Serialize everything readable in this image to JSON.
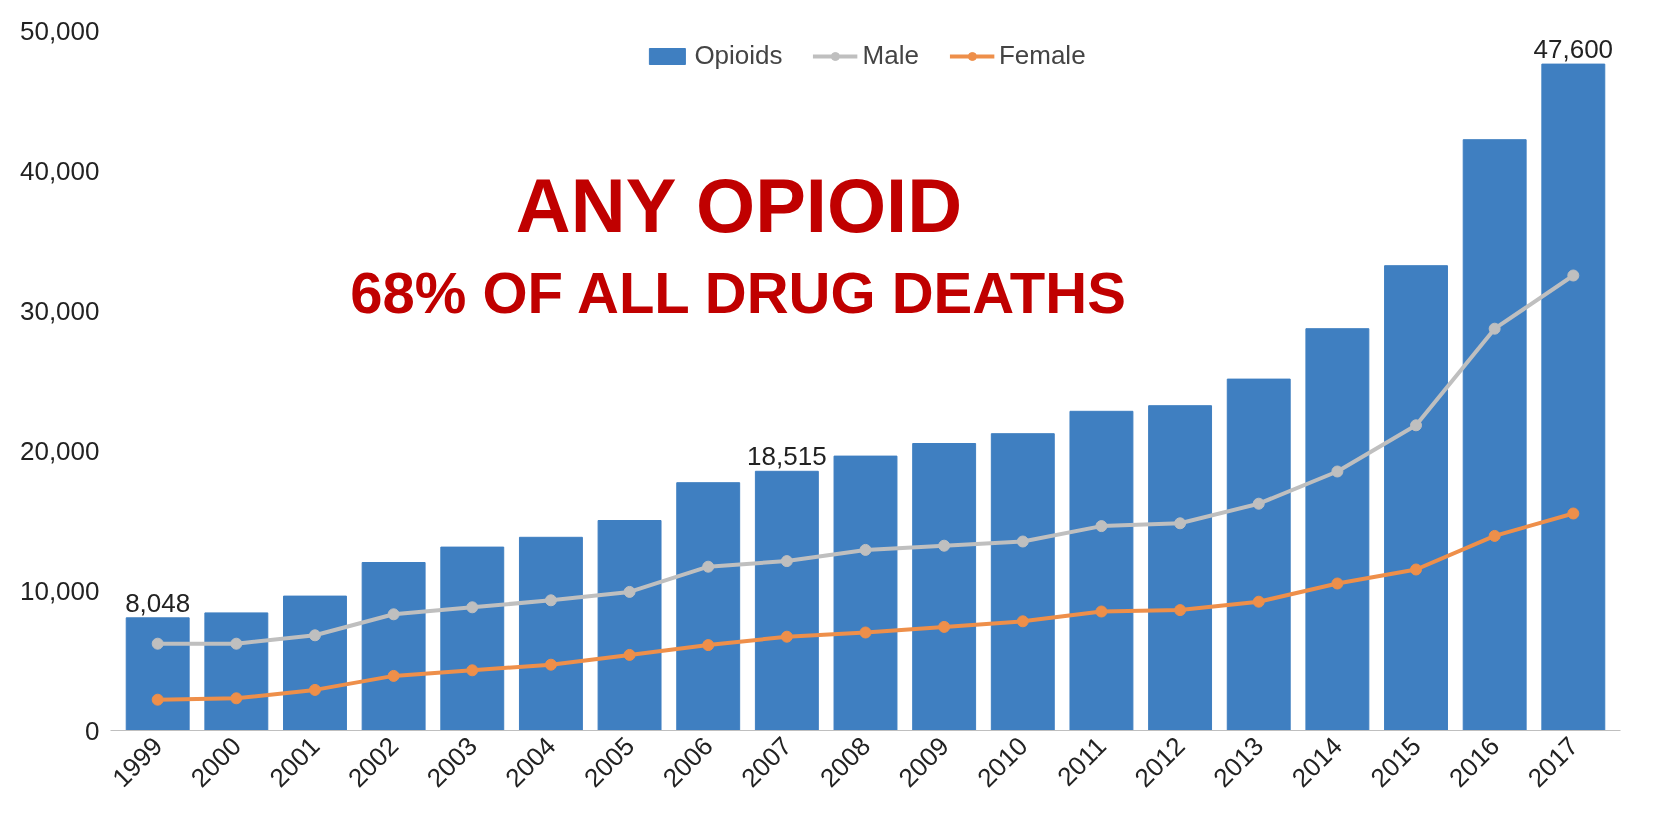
{
  "chart_data": {
    "type": "bar",
    "categories": [
      "1999",
      "2000",
      "2001",
      "2002",
      "2003",
      "2004",
      "2005",
      "2006",
      "2007",
      "2008",
      "2009",
      "2010",
      "2011",
      "2012",
      "2013",
      "2014",
      "2015",
      "2016",
      "2017"
    ],
    "series": [
      {
        "name": "Opioids",
        "color": "#3f7fc1",
        "values": [
          8048,
          8400,
          9600,
          12000,
          13100,
          13800,
          15000,
          17700,
          18515,
          19600,
          20500,
          21200,
          22800,
          23200,
          25100,
          28700,
          33200,
          42200,
          47600
        ],
        "value_labels": [
          "8,048",
          null,
          null,
          null,
          null,
          null,
          null,
          null,
          "18,515",
          null,
          null,
          null,
          null,
          null,
          null,
          null,
          null,
          null,
          "47,600"
        ]
      },
      {
        "name": "Male",
        "type": "line",
        "color": "#bfbfbf",
        "values": [
          6200,
          6200,
          6800,
          8300,
          8800,
          9300,
          9900,
          11700,
          12100,
          12900,
          13200,
          13500,
          14600,
          14800,
          16200,
          18500,
          21800,
          28700,
          32500
        ]
      },
      {
        "name": "Female",
        "type": "line",
        "color": "#ee8f4a",
        "values": [
          2200,
          2300,
          2900,
          3900,
          4300,
          4700,
          5400,
          6100,
          6700,
          7000,
          7400,
          7800,
          8500,
          8600,
          9200,
          10500,
          11500,
          13900,
          15500
        ]
      }
    ],
    "annotations": [
      "ANY OPIOID",
      "68% OF ALL DRUG DEATHS"
    ],
    "ylim": [
      0,
      50000
    ],
    "yticks": [
      {
        "value": 0,
        "label": "0"
      },
      {
        "value": 10000,
        "label": "10,000"
      },
      {
        "value": 20000,
        "label": "20,000"
      },
      {
        "value": 30000,
        "label": "30,000"
      },
      {
        "value": 40000,
        "label": "40,000"
      },
      {
        "value": 50000,
        "label": "50,000"
      }
    ],
    "grid": false,
    "legend": "top",
    "marker": "circle",
    "line_style": "solid"
  }
}
